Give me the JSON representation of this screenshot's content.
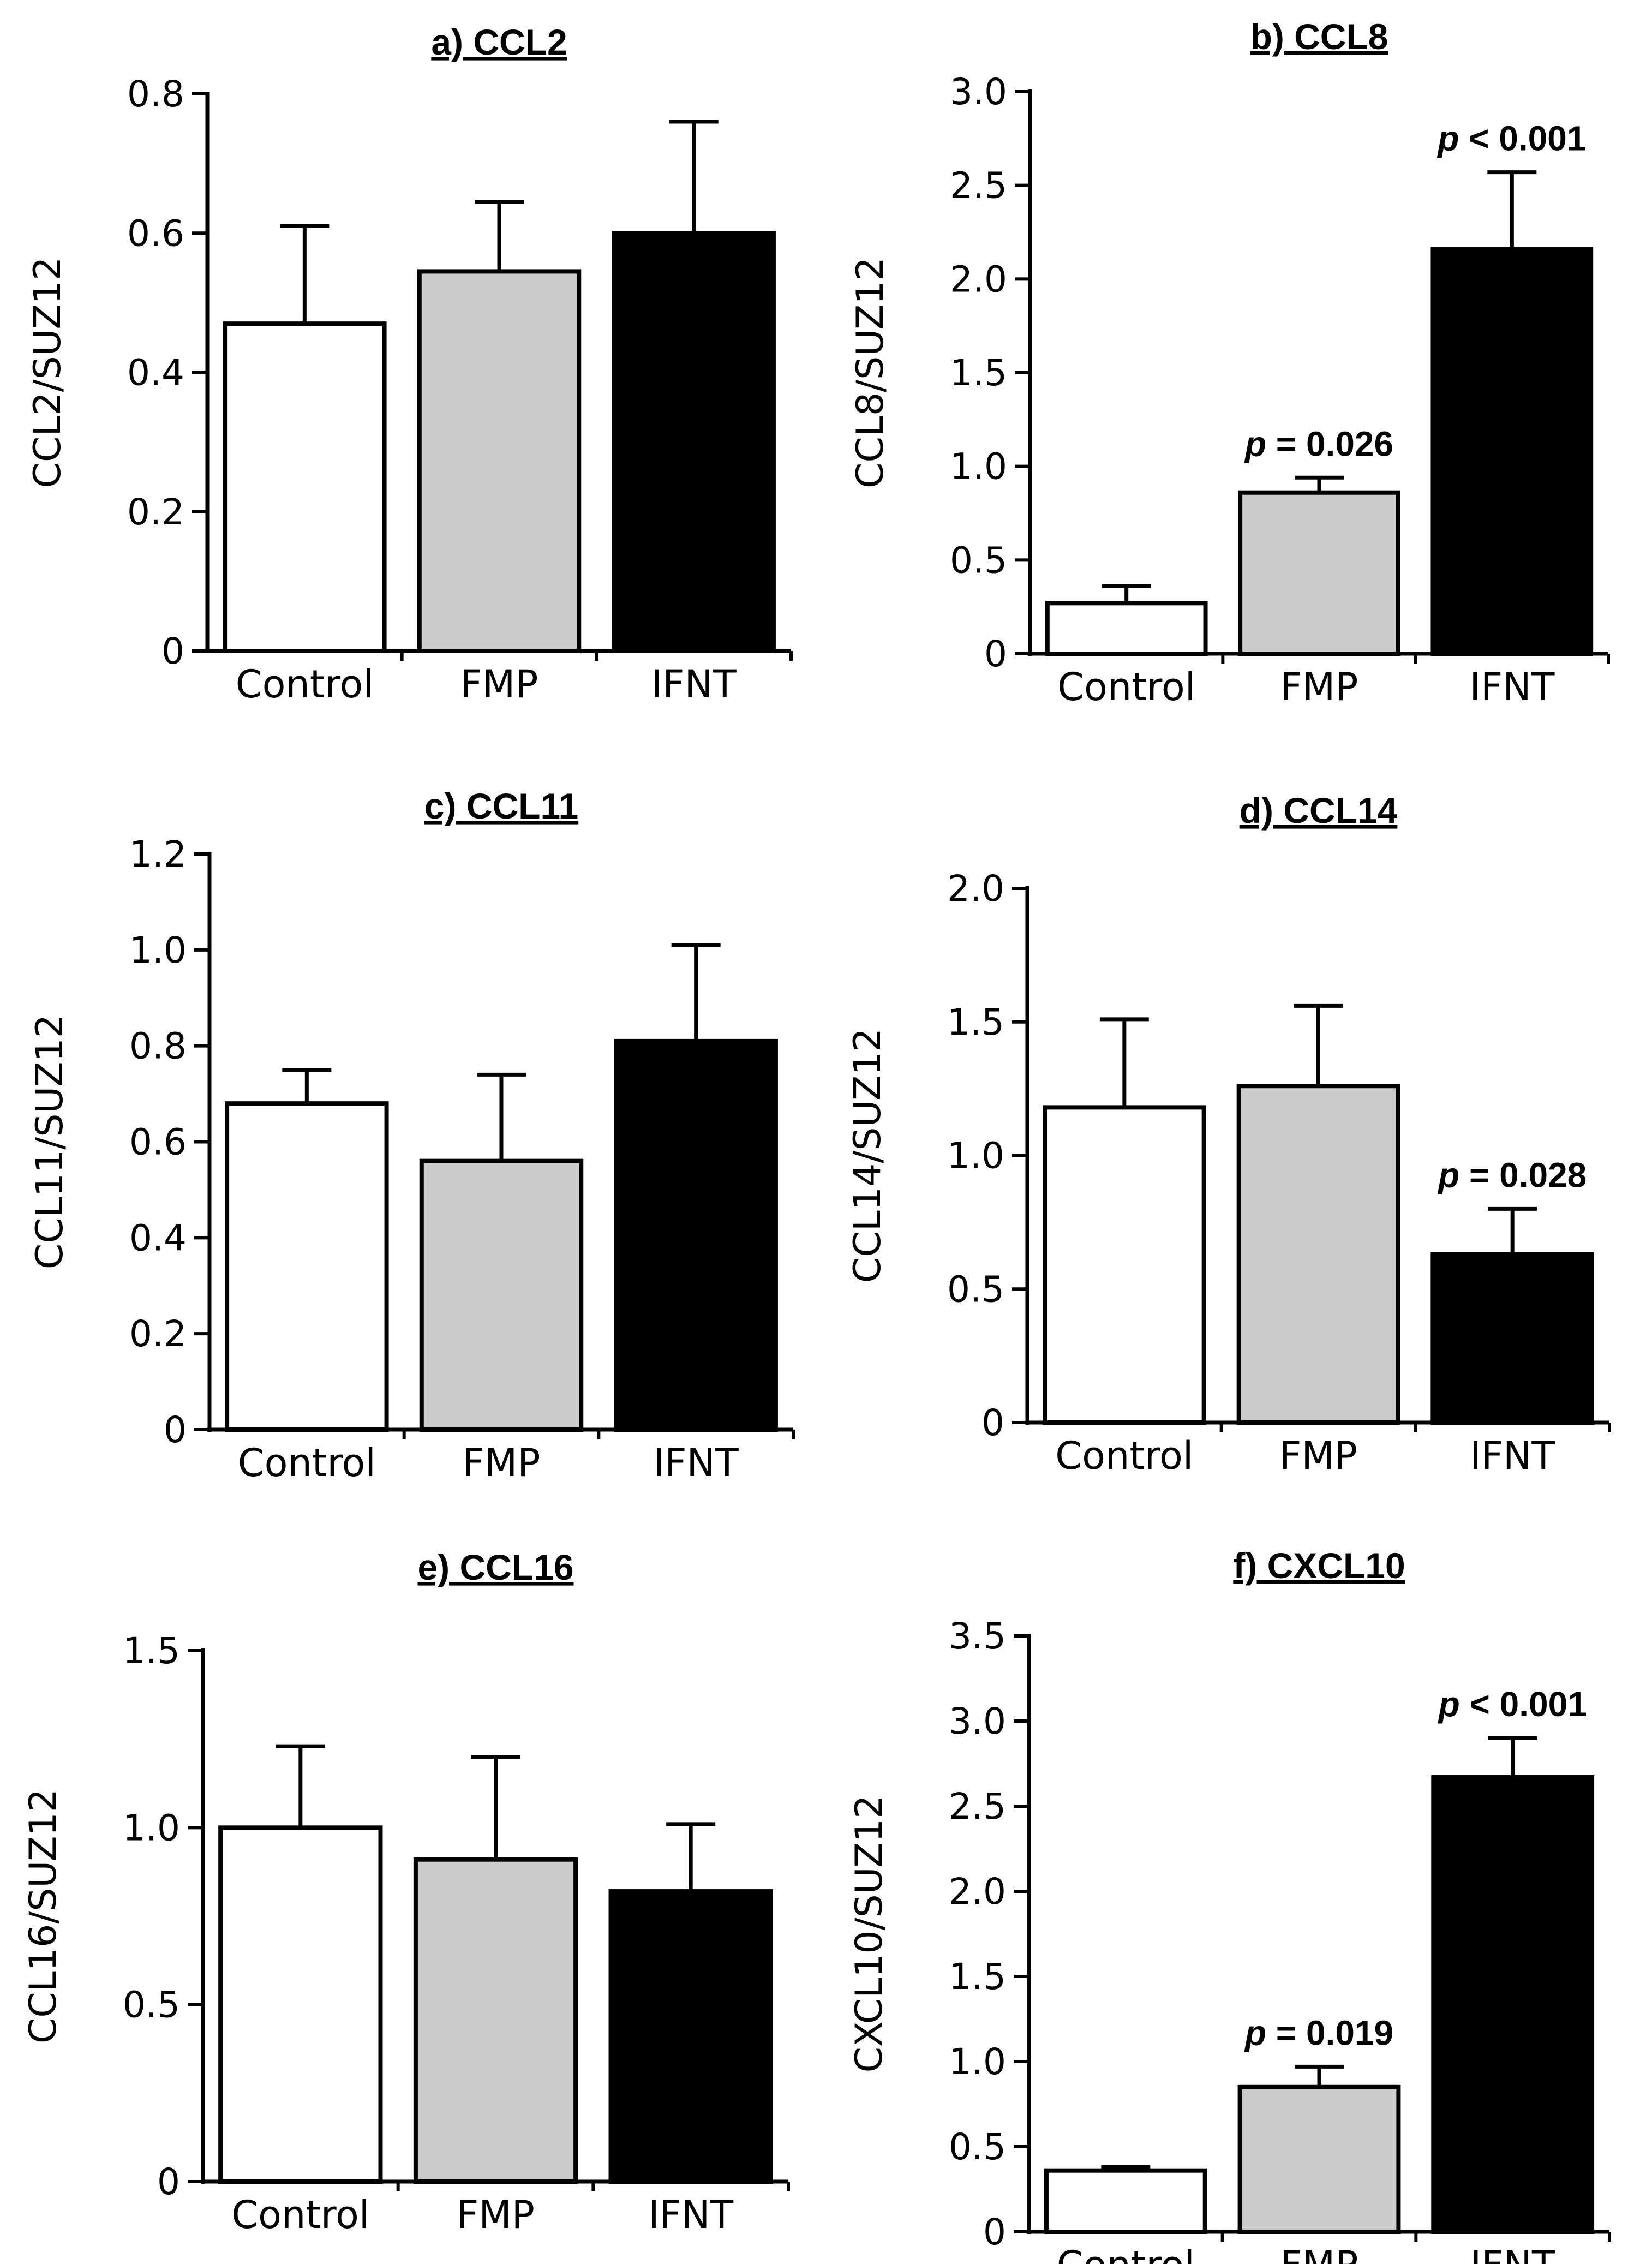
{
  "chart_data": [
    {
      "id": "a",
      "type": "bar",
      "title": "a) CCL2",
      "ylabel": "CCL2/SUZ12",
      "categories": [
        "Control",
        "FMP",
        "IFNT"
      ],
      "values": [
        0.47,
        0.545,
        0.6
      ],
      "errors": [
        0.14,
        0.1,
        0.16
      ],
      "colors": [
        "#ffffff",
        "#cccccc",
        "#000000"
      ],
      "ylim": [
        0,
        0.8
      ],
      "yticks": [
        0,
        0.2,
        0.4,
        0.6,
        0.8
      ],
      "ytick_labels": [
        "0",
        "0.2",
        "0.4",
        "0.6",
        "0.8"
      ],
      "annotations": [
        null,
        null,
        null
      ]
    },
    {
      "id": "b",
      "type": "bar",
      "title": "b) CCL8",
      "ylabel": "CCL8/SUZ12",
      "categories": [
        "Control",
        "FMP",
        "IFNT"
      ],
      "values": [
        0.27,
        0.86,
        2.16
      ],
      "errors": [
        0.09,
        0.08,
        0.41
      ],
      "colors": [
        "#ffffff",
        "#cccccc",
        "#000000"
      ],
      "ylim": [
        0,
        3.0
      ],
      "yticks": [
        0,
        0.5,
        1.0,
        1.5,
        2.0,
        2.5,
        3.0
      ],
      "ytick_labels": [
        "0",
        "0.5",
        "1.0",
        "1.5",
        "2.0",
        "2.5",
        "3.0"
      ],
      "annotations": [
        null,
        {
          "p": "p",
          "rest": " = 0.026"
        },
        {
          "p": "p",
          "rest": " < 0.001"
        }
      ]
    },
    {
      "id": "c",
      "type": "bar",
      "title": "c) CCL11",
      "ylabel": "CCL11/SUZ12",
      "categories": [
        "Control",
        "FMP",
        "IFNT"
      ],
      "values": [
        0.68,
        0.56,
        0.81
      ],
      "errors": [
        0.07,
        0.18,
        0.2
      ],
      "colors": [
        "#ffffff",
        "#cccccc",
        "#000000"
      ],
      "ylim": [
        0,
        1.2
      ],
      "yticks": [
        0,
        0.2,
        0.4,
        0.6,
        0.8,
        1.0,
        1.2
      ],
      "ytick_labels": [
        "0",
        "0.2",
        "0.4",
        "0.6",
        "0.8",
        "1.0",
        "1.2"
      ],
      "annotations": [
        null,
        null,
        null
      ]
    },
    {
      "id": "d",
      "type": "bar",
      "title": "d) CCL14",
      "ylabel": "CCL14/SUZ12",
      "categories": [
        "Control",
        "FMP",
        "IFNT"
      ],
      "values": [
        1.18,
        1.26,
        0.63
      ],
      "errors": [
        0.33,
        0.3,
        0.17
      ],
      "colors": [
        "#ffffff",
        "#cccccc",
        "#000000"
      ],
      "ylim": [
        0,
        2.0
      ],
      "yticks": [
        0,
        0.5,
        1.0,
        1.5,
        2.0
      ],
      "ytick_labels": [
        "0",
        "0.5",
        "1.0",
        "1.5",
        "2.0"
      ],
      "annotations": [
        null,
        null,
        {
          "p": "p",
          "rest": " = 0.028"
        }
      ]
    },
    {
      "id": "e",
      "type": "bar",
      "title": "e) CCL16",
      "ylabel": "CCL16/SUZ12",
      "categories": [
        "Control",
        "FMP",
        "IFNT"
      ],
      "values": [
        1.0,
        0.91,
        0.82
      ],
      "errors": [
        0.23,
        0.29,
        0.19
      ],
      "colors": [
        "#ffffff",
        "#cccccc",
        "#000000"
      ],
      "ylim": [
        0,
        1.5
      ],
      "yticks": [
        0,
        0.5,
        1.0,
        1.5
      ],
      "ytick_labels": [
        "0",
        "0.5",
        "1.0",
        "1.5"
      ],
      "annotations": [
        null,
        null,
        null
      ]
    },
    {
      "id": "f",
      "type": "bar",
      "title": "f) CXCL10",
      "ylabel": "CXCL10/SUZ12",
      "categories": [
        "Control",
        "FMP",
        "IFNT"
      ],
      "values": [
        0.36,
        0.85,
        2.67
      ],
      "errors": [
        0.02,
        0.12,
        0.23
      ],
      "colors": [
        "#ffffff",
        "#cccccc",
        "#000000"
      ],
      "ylim": [
        0,
        3.5
      ],
      "yticks": [
        0,
        0.5,
        1.0,
        1.5,
        2.0,
        2.5,
        3.0,
        3.5
      ],
      "ytick_labels": [
        "0",
        "0.5",
        "1.0",
        "1.5",
        "2.0",
        "2.5",
        "3.0",
        "3.5"
      ],
      "annotations": [
        null,
        {
          "p": "p",
          "rest": " = 0.019"
        },
        {
          "p": "p",
          "rest": " < 0.001"
        }
      ]
    }
  ]
}
